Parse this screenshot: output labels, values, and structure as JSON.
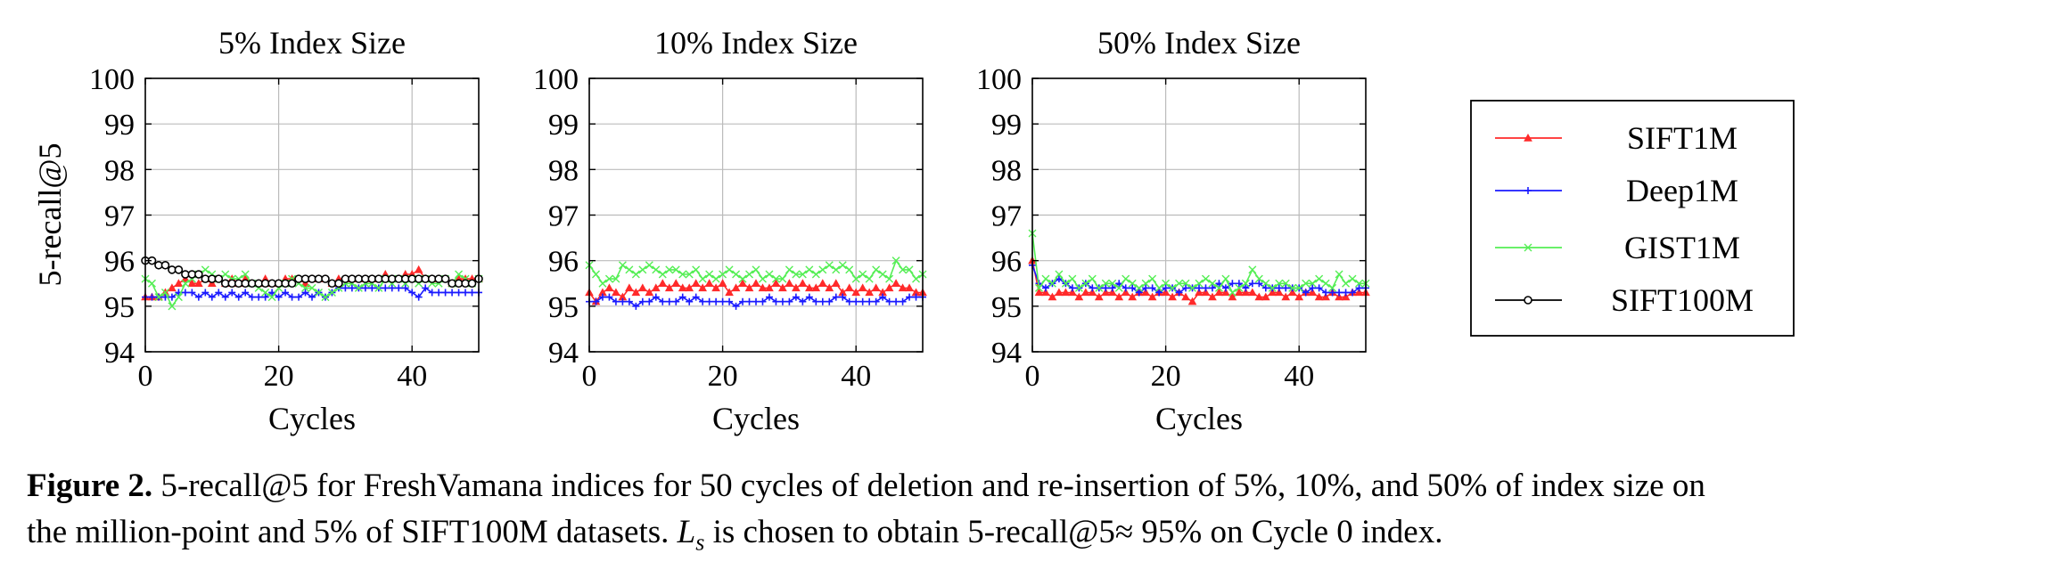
{
  "figure": {
    "ylabel": "5-recall@5",
    "legend_placement": "right",
    "colors": {
      "grid": "#bbbbbb",
      "frame": "#000000"
    }
  },
  "caption": {
    "label": "Figure 2.",
    "line1": "5-recall@5 for FreshVamana indices for 50 cycles of deletion and re-insertion of 5%, 10%, and 50% of index size on",
    "line2_a": "the million-point and 5% of SIFT100M datasets.",
    "math_L": "L",
    "math_s": "s",
    "line2_b": "is chosen to obtain 5-recall@5≈ 95% on Cycle 0 index."
  },
  "legend": [
    {
      "name": "SIFT1M",
      "color": "#ff2a2a",
      "marker": "triangle"
    },
    {
      "name": "Deep1M",
      "color": "#1a1aff",
      "marker": "plus"
    },
    {
      "name": "GIST1M",
      "color": "#55ee55",
      "marker": "cross"
    },
    {
      "name": "SIFT100M",
      "color": "#000000",
      "marker": "circle"
    }
  ],
  "chart_data": [
    {
      "type": "line",
      "title": "5% Index Size",
      "xlabel": "Cycles",
      "ylabel": "5-recall@5",
      "xlim": [
        0,
        50
      ],
      "ylim": [
        94,
        100
      ],
      "xticks": [
        0,
        20,
        40
      ],
      "yticks": [
        94,
        95,
        96,
        97,
        98,
        99,
        100
      ],
      "grid": true,
      "x": [
        0,
        1,
        2,
        3,
        4,
        5,
        6,
        7,
        8,
        9,
        10,
        11,
        12,
        13,
        14,
        15,
        16,
        17,
        18,
        19,
        20,
        21,
        22,
        23,
        24,
        25,
        26,
        27,
        28,
        29,
        30,
        31,
        32,
        33,
        34,
        35,
        36,
        37,
        38,
        39,
        40,
        41,
        42,
        43,
        44,
        45,
        46,
        47,
        48,
        49,
        50
      ],
      "series": [
        {
          "name": "SIFT1M",
          "values": [
            95.2,
            95.2,
            95.2,
            95.3,
            95.4,
            95.5,
            95.6,
            95.5,
            95.5,
            95.6,
            95.5,
            95.6,
            95.5,
            95.6,
            95.5,
            95.6,
            95.5,
            95.5,
            95.6,
            95.5,
            95.5,
            95.6,
            95.6,
            95.6,
            95.5,
            95.6,
            95.6,
            95.6,
            95.5,
            95.6,
            95.6,
            95.6,
            95.6,
            95.6,
            95.6,
            95.6,
            95.7,
            95.6,
            95.6,
            95.7,
            95.7,
            95.8,
            95.6,
            95.6,
            95.6,
            95.6,
            95.5,
            95.6,
            95.6,
            95.6,
            95.6
          ]
        },
        {
          "name": "Deep1M",
          "values": [
            95.2,
            95.2,
            95.2,
            95.2,
            95.2,
            95.3,
            95.3,
            95.3,
            95.2,
            95.3,
            95.2,
            95.3,
            95.2,
            95.3,
            95.2,
            95.3,
            95.2,
            95.2,
            95.2,
            95.3,
            95.2,
            95.3,
            95.2,
            95.2,
            95.3,
            95.2,
            95.3,
            95.2,
            95.3,
            95.4,
            95.4,
            95.4,
            95.4,
            95.4,
            95.4,
            95.4,
            95.4,
            95.4,
            95.4,
            95.4,
            95.3,
            95.2,
            95.4,
            95.3,
            95.3,
            95.3,
            95.3,
            95.3,
            95.3,
            95.3,
            95.3
          ]
        },
        {
          "name": "GIST1M",
          "values": [
            95.6,
            95.5,
            95.2,
            95.3,
            95.0,
            95.2,
            95.5,
            95.6,
            95.7,
            95.8,
            95.7,
            95.6,
            95.7,
            95.6,
            95.6,
            95.7,
            95.5,
            95.4,
            95.3,
            95.2,
            95.4,
            95.5,
            95.6,
            95.5,
            95.4,
            95.4,
            95.3,
            95.2,
            95.3,
            95.4,
            95.5,
            95.5,
            95.4,
            95.5,
            95.5,
            95.4,
            95.6,
            95.5,
            95.6,
            95.5,
            95.6,
            95.5,
            95.6,
            95.5,
            95.5,
            95.6,
            95.5,
            95.7,
            95.6,
            95.5,
            95.6
          ]
        },
        {
          "name": "SIFT100M",
          "values": [
            96.0,
            96.0,
            95.9,
            95.9,
            95.8,
            95.8,
            95.7,
            95.7,
            95.7,
            95.6,
            95.6,
            95.6,
            95.5,
            95.5,
            95.5,
            95.5,
            95.5,
            95.5,
            95.5,
            95.5,
            95.5,
            95.5,
            95.5,
            95.6,
            95.6,
            95.6,
            95.6,
            95.6,
            95.5,
            95.5,
            95.6,
            95.6,
            95.6,
            95.6,
            95.6,
            95.6,
            95.6,
            95.6,
            95.6,
            95.6,
            95.6,
            95.6,
            95.6,
            95.6,
            95.6,
            95.6,
            95.5,
            95.5,
            95.5,
            95.5,
            95.6
          ]
        }
      ]
    },
    {
      "type": "line",
      "title": "10% Index Size",
      "xlabel": "Cycles",
      "xlim": [
        0,
        50
      ],
      "ylim": [
        94,
        100
      ],
      "xticks": [
        0,
        20,
        40
      ],
      "yticks": [
        94,
        95,
        96,
        97,
        98,
        99,
        100
      ],
      "grid": true,
      "x": [
        0,
        1,
        2,
        3,
        4,
        5,
        6,
        7,
        8,
        9,
        10,
        11,
        12,
        13,
        14,
        15,
        16,
        17,
        18,
        19,
        20,
        21,
        22,
        23,
        24,
        25,
        26,
        27,
        28,
        29,
        30,
        31,
        32,
        33,
        34,
        35,
        36,
        37,
        38,
        39,
        40,
        41,
        42,
        43,
        44,
        45,
        46,
        47,
        48,
        49,
        50
      ],
      "series": [
        {
          "name": "SIFT1M",
          "values": [
            95.3,
            95.1,
            95.3,
            95.4,
            95.3,
            95.2,
            95.4,
            95.3,
            95.4,
            95.3,
            95.4,
            95.5,
            95.4,
            95.5,
            95.4,
            95.4,
            95.5,
            95.4,
            95.5,
            95.4,
            95.5,
            95.3,
            95.4,
            95.5,
            95.4,
            95.5,
            95.4,
            95.4,
            95.5,
            95.4,
            95.5,
            95.4,
            95.5,
            95.4,
            95.4,
            95.5,
            95.4,
            95.5,
            95.3,
            95.4,
            95.3,
            95.4,
            95.3,
            95.4,
            95.3,
            95.4,
            95.5,
            95.4,
            95.4,
            95.3,
            95.3
          ]
        },
        {
          "name": "Deep1M",
          "values": [
            95.1,
            95.1,
            95.2,
            95.2,
            95.1,
            95.1,
            95.1,
            95.0,
            95.1,
            95.1,
            95.2,
            95.1,
            95.1,
            95.1,
            95.2,
            95.1,
            95.2,
            95.1,
            95.1,
            95.1,
            95.1,
            95.1,
            95.0,
            95.1,
            95.1,
            95.1,
            95.1,
            95.2,
            95.1,
            95.1,
            95.1,
            95.2,
            95.1,
            95.2,
            95.1,
            95.1,
            95.1,
            95.2,
            95.2,
            95.1,
            95.1,
            95.1,
            95.1,
            95.1,
            95.2,
            95.1,
            95.1,
            95.1,
            95.2,
            95.2,
            95.2
          ]
        },
        {
          "name": "GIST1M",
          "values": [
            95.9,
            95.7,
            95.5,
            95.6,
            95.6,
            95.9,
            95.8,
            95.7,
            95.8,
            95.9,
            95.8,
            95.7,
            95.8,
            95.8,
            95.7,
            95.7,
            95.8,
            95.6,
            95.7,
            95.6,
            95.7,
            95.8,
            95.7,
            95.6,
            95.7,
            95.8,
            95.6,
            95.7,
            95.6,
            95.6,
            95.8,
            95.7,
            95.7,
            95.8,
            95.7,
            95.8,
            95.9,
            95.8,
            95.9,
            95.8,
            95.6,
            95.7,
            95.6,
            95.8,
            95.7,
            95.6,
            96.0,
            95.8,
            95.8,
            95.6,
            95.7
          ]
        }
      ]
    },
    {
      "type": "line",
      "title": "50% Index Size",
      "xlabel": "Cycles",
      "xlim": [
        0,
        50
      ],
      "ylim": [
        94,
        100
      ],
      "xticks": [
        0,
        20,
        40
      ],
      "yticks": [
        94,
        95,
        96,
        97,
        98,
        99,
        100
      ],
      "grid": true,
      "x": [
        0,
        1,
        2,
        3,
        4,
        5,
        6,
        7,
        8,
        9,
        10,
        11,
        12,
        13,
        14,
        15,
        16,
        17,
        18,
        19,
        20,
        21,
        22,
        23,
        24,
        25,
        26,
        27,
        28,
        29,
        30,
        31,
        32,
        33,
        34,
        35,
        36,
        37,
        38,
        39,
        40,
        41,
        42,
        43,
        44,
        45,
        46,
        47,
        48,
        49,
        50
      ],
      "series": [
        {
          "name": "SIFT1M",
          "values": [
            96.0,
            95.3,
            95.3,
            95.2,
            95.3,
            95.3,
            95.3,
            95.2,
            95.3,
            95.3,
            95.2,
            95.3,
            95.3,
            95.2,
            95.3,
            95.2,
            95.3,
            95.3,
            95.2,
            95.3,
            95.3,
            95.2,
            95.3,
            95.2,
            95.1,
            95.3,
            95.3,
            95.2,
            95.3,
            95.3,
            95.2,
            95.3,
            95.3,
            95.3,
            95.2,
            95.2,
            95.3,
            95.3,
            95.2,
            95.3,
            95.2,
            95.3,
            95.3,
            95.2,
            95.2,
            95.3,
            95.2,
            95.2,
            95.3,
            95.3,
            95.3
          ]
        },
        {
          "name": "Deep1M",
          "values": [
            95.9,
            95.5,
            95.4,
            95.5,
            95.6,
            95.5,
            95.4,
            95.4,
            95.5,
            95.4,
            95.4,
            95.4,
            95.4,
            95.5,
            95.4,
            95.4,
            95.3,
            95.4,
            95.4,
            95.3,
            95.4,
            95.4,
            95.3,
            95.4,
            95.4,
            95.4,
            95.4,
            95.4,
            95.5,
            95.4,
            95.5,
            95.5,
            95.4,
            95.5,
            95.5,
            95.4,
            95.4,
            95.4,
            95.4,
            95.4,
            95.4,
            95.3,
            95.4,
            95.4,
            95.3,
            95.3,
            95.3,
            95.3,
            95.3,
            95.4,
            95.4
          ]
        },
        {
          "name": "GIST1M",
          "values": [
            96.6,
            95.4,
            95.6,
            95.5,
            95.7,
            95.5,
            95.6,
            95.4,
            95.5,
            95.6,
            95.4,
            95.5,
            95.5,
            95.4,
            95.6,
            95.5,
            95.4,
            95.5,
            95.6,
            95.4,
            95.5,
            95.4,
            95.5,
            95.5,
            95.4,
            95.5,
            95.6,
            95.5,
            95.4,
            95.6,
            95.3,
            95.4,
            95.5,
            95.8,
            95.6,
            95.5,
            95.4,
            95.5,
            95.5,
            95.4,
            95.4,
            95.5,
            95.5,
            95.6,
            95.5,
            95.4,
            95.7,
            95.5,
            95.6,
            95.5,
            95.5
          ]
        }
      ]
    }
  ]
}
